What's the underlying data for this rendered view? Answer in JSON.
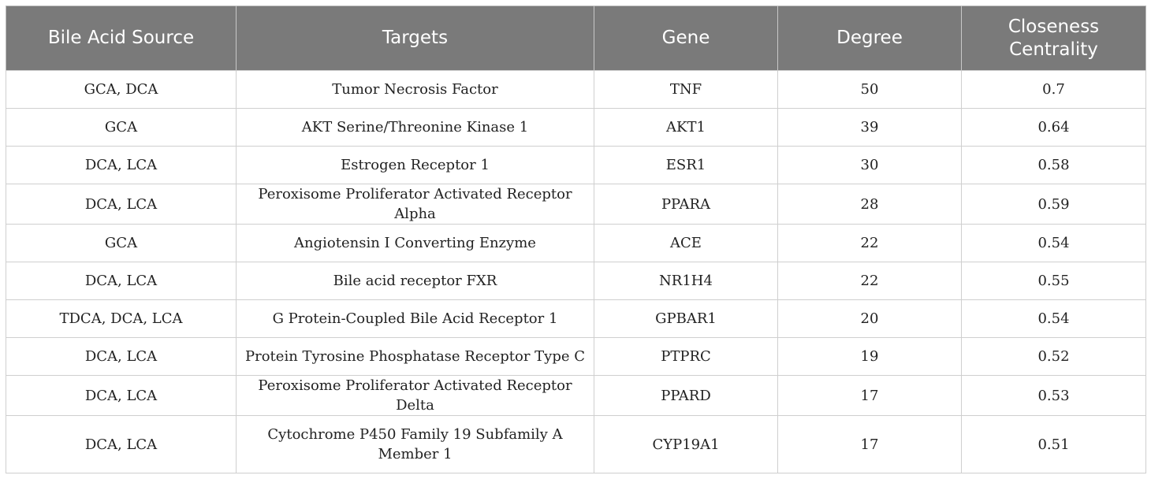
{
  "table": {
    "headers": [
      "Bile Acid Source",
      "Targets",
      "Gene",
      "Degree",
      "Closeness Centrality"
    ],
    "rows": [
      [
        "GCA, DCA",
        "Tumor Necrosis Factor",
        "TNF",
        "50",
        "0.7"
      ],
      [
        "GCA",
        "AKT Serine/Threonine Kinase 1",
        "AKT1",
        "39",
        "0.64"
      ],
      [
        "DCA, LCA",
        "Estrogen Receptor 1",
        "ESR1",
        "30",
        "0.58"
      ],
      [
        "DCA, LCA",
        "Peroxisome Proliferator Activated Receptor Alpha",
        "PPARA",
        "28",
        "0.59"
      ],
      [
        "GCA",
        "Angiotensin I Converting Enzyme",
        "ACE",
        "22",
        "0.54"
      ],
      [
        "DCA, LCA",
        "Bile acid receptor FXR",
        "NR1H4",
        "22",
        "0.55"
      ],
      [
        "TDCA, DCA, LCA",
        "G Protein-Coupled Bile Acid Receptor 1",
        "GPBAR1",
        "20",
        "0.54"
      ],
      [
        "DCA, LCA",
        "Protein Tyrosine Phosphatase Receptor Type C",
        "PTPRC",
        "19",
        "0.52"
      ],
      [
        "DCA, LCA",
        "Peroxisome Proliferator Activated Receptor Delta",
        "PPARD",
        "17",
        "0.53"
      ],
      [
        "DCA, LCA",
        "Cytochrome P450 Family 19 Subfamily A Member 1",
        "CYP19A1",
        "17",
        "0.51"
      ]
    ]
  },
  "colors": {
    "header_bg": "#7a7a7a",
    "header_text": "#ffffff",
    "grid": "#cfcfcf"
  }
}
